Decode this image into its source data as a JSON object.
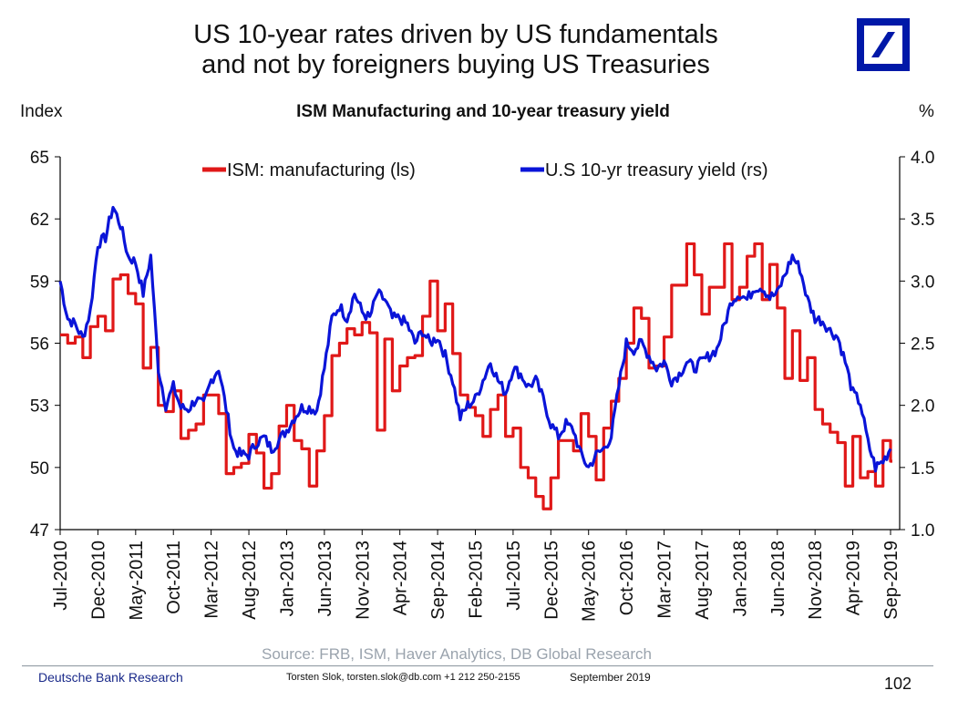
{
  "header": {
    "title_line1": "US 10-year rates driven by US fundamentals",
    "title_line2": "and not by foreigners buying US Treasuries",
    "logo": "deutsche-bank-logo"
  },
  "footer": {
    "source": "Source: FRB, ISM, Haver Analytics, DB Global Research",
    "brand": "Deutsche Bank Research",
    "author": "Torsten Slok, torsten.slok@db.com  +1 212 250-2155",
    "date": "September 2019",
    "page": "102"
  },
  "colors": {
    "ism": "#e01818",
    "yield": "#0a14d8",
    "logo": "#0018a8"
  },
  "chart_data": {
    "type": "line",
    "title": "ISM Manufacturing and 10-year treasury yield",
    "ylabel_left": "Index",
    "ylabel_right": "%",
    "ylim_left": [
      47,
      65
    ],
    "ylim_right": [
      1.0,
      4.0
    ],
    "yticks_left": [
      "47",
      "50",
      "53",
      "56",
      "59",
      "62",
      "65"
    ],
    "yticks_right": [
      "1.0",
      "1.5",
      "2.0",
      "2.5",
      "3.0",
      "3.5",
      "4.0"
    ],
    "x_start": "2010-07",
    "x_end": "2019-09",
    "xtick_labels": [
      "Jul-2010",
      "Dec-2010",
      "May-2011",
      "Oct-2011",
      "Mar-2012",
      "Aug-2012",
      "Jan-2013",
      "Jun-2013",
      "Nov-2013",
      "Apr-2014",
      "Sep-2014",
      "Feb-2015",
      "Jul-2015",
      "Dec-2015",
      "May-2016",
      "Oct-2016",
      "Mar-2017",
      "Aug-2017",
      "Jan-2018",
      "Jun-2018",
      "Nov-2018",
      "Apr-2019",
      "Sep-2019"
    ],
    "legend_position": "top",
    "grid": false,
    "series": [
      {
        "name": "ISM: manufacturing (ls)",
        "axis": "left",
        "step": true,
        "values": [
          56.4,
          56.0,
          56.3,
          55.3,
          56.8,
          57.3,
          56.6,
          59.1,
          59.3,
          58.4,
          57.9,
          54.8,
          55.8,
          53.0,
          52.7,
          53.7,
          51.4,
          51.8,
          52.1,
          53.5,
          53.5,
          52.6,
          49.7,
          50.0,
          50.2,
          51.6,
          50.7,
          49.0,
          49.7,
          52.0,
          53.0,
          51.3,
          50.9,
          49.1,
          50.8,
          52.5,
          55.4,
          56.0,
          56.7,
          56.4,
          57.0,
          56.5,
          51.8,
          56.2,
          53.7,
          54.9,
          55.3,
          55.4,
          57.3,
          59.0,
          56.6,
          57.9,
          55.5,
          53.5,
          52.9,
          52.5,
          51.5,
          52.8,
          53.5,
          51.5,
          51.9,
          50.0,
          49.5,
          48.6,
          48.0,
          49.5,
          51.3,
          51.3,
          50.8,
          52.6,
          51.5,
          49.4,
          51.9,
          53.2,
          54.3,
          56.0,
          57.7,
          57.2,
          54.8,
          54.9,
          56.3,
          58.8,
          58.8,
          60.8,
          59.3,
          57.4,
          58.7,
          58.7,
          60.8,
          58.1,
          58.7,
          60.2,
          60.8,
          58.1,
          59.8,
          57.7,
          54.3,
          56.6,
          54.2,
          55.3,
          52.8,
          52.1,
          51.7,
          51.2,
          49.1,
          51.5,
          49.5,
          49.8,
          49.1,
          51.3,
          50.3
        ]
      },
      {
        "name": "U.S 10-yr treasury yield (rs)",
        "axis": "right",
        "step": false,
        "values": [
          3.0,
          2.7,
          2.65,
          2.54,
          2.76,
          3.3,
          3.35,
          3.6,
          3.45,
          3.2,
          3.15,
          2.9,
          3.2,
          2.3,
          2.0,
          2.15,
          1.98,
          1.97,
          2.05,
          2.0,
          2.2,
          2.3,
          1.97,
          1.65,
          1.6,
          1.6,
          1.7,
          1.74,
          1.65,
          1.72,
          1.8,
          1.9,
          1.98,
          1.98,
          1.96,
          2.3,
          2.7,
          2.8,
          2.7,
          2.9,
          2.75,
          2.7,
          2.9,
          2.85,
          2.7,
          2.7,
          2.65,
          2.5,
          2.6,
          2.5,
          2.55,
          2.4,
          2.2,
          1.9,
          2.0,
          2.05,
          2.2,
          2.35,
          2.2,
          2.1,
          2.3,
          2.25,
          2.15,
          2.2,
          2.05,
          1.85,
          1.75,
          1.85,
          1.8,
          1.6,
          1.5,
          1.6,
          1.65,
          1.75,
          2.15,
          2.5,
          2.45,
          2.5,
          2.4,
          2.3,
          2.35,
          2.2,
          2.25,
          2.35,
          2.3,
          2.35,
          2.4,
          2.45,
          2.65,
          2.85,
          2.9,
          2.85,
          2.95,
          2.95,
          2.87,
          2.9,
          3.05,
          3.2,
          3.1,
          2.85,
          2.7,
          2.68,
          2.6,
          2.55,
          2.35,
          2.1,
          2.02,
          1.7,
          1.5,
          1.55,
          1.65
        ]
      }
    ]
  }
}
